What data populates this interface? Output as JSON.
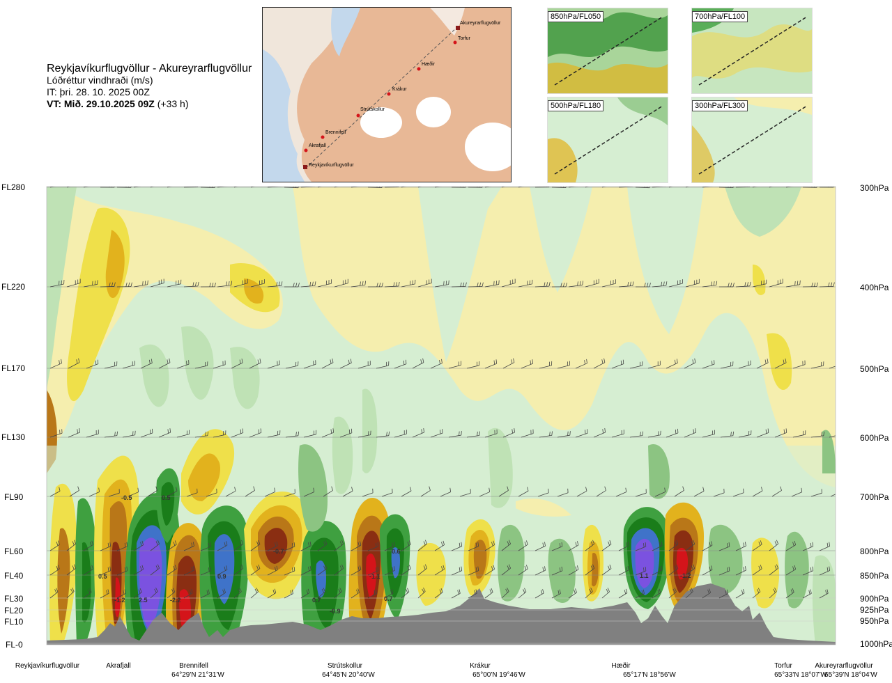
{
  "header": {
    "route": "Reykjavíkurflugvöllur - Akureyrarflugvöllur",
    "quantity": "Lóðréttur vindhraði (m/s)",
    "issue_time": "IT: þri. 28. 10. 2025 00Z",
    "valid_time_bold": "VT: Mið. 29.10.2025 09Z",
    "valid_time_offset": "(+33 h)"
  },
  "overview_map": {
    "places": [
      "Akureyrarflugvöllur",
      "Torfur",
      "Hæðir",
      "Krákur",
      "Strútskollur",
      "Brennifell",
      "Akrafjall",
      "Reykjavíkurflugvöllur"
    ]
  },
  "mini_maps": [
    {
      "label": "850hPa/FL050"
    },
    {
      "label": "700hPa/FL100"
    },
    {
      "label": "500hPa/FL180"
    },
    {
      "label": "300hPa/FL300"
    }
  ],
  "chart_data": {
    "type": "heatmap",
    "title": "Lóðréttur vindhraði (m/s)",
    "y_left_ticks": [
      "FL280",
      "FL220",
      "FL170",
      "FL130",
      "FL90",
      "FL60",
      "FL40",
      "FL30",
      "FL20",
      "FL10",
      "FL-0"
    ],
    "y_right_ticks": [
      "300hPa",
      "400hPa",
      "500hPa",
      "600hPa",
      "700hPa",
      "800hPa",
      "850hPa",
      "900hPa",
      "925hPa",
      "950hPa",
      "1000hPa"
    ],
    "waypoints": [
      {
        "name": "Reykjavíkurflugvöllur",
        "coord": ""
      },
      {
        "name": "Akrafjall",
        "coord": ""
      },
      {
        "name": "Brennifell",
        "coord": "64°29'N 21°31'W"
      },
      {
        "name": "Strútskollur",
        "coord": "64°45'N 20°40'W"
      },
      {
        "name": "Krákur",
        "coord": "65°00'N 19°46'W"
      },
      {
        "name": "Hæðir",
        "coord": "65°17'N 18°56'W"
      },
      {
        "name": "Torfur",
        "coord": "65°33'N 18°07'W"
      },
      {
        "name": "Akureyrarflugvöllur",
        "coord": "65°39'N 18°04'W"
      }
    ],
    "value_labels": [
      "-0.5",
      "0.5",
      "0.5",
      "-1.2",
      "2.5",
      "-2.2",
      "0.9",
      "-0.7",
      "-1.1",
      "0.6",
      "0.7",
      "-0.9",
      "0.7",
      "1.1",
      "-1.2"
    ],
    "colors": {
      "up_strong": "#7b52e0",
      "up_3": "#3f73c9",
      "up_2": "#1a7d1a",
      "up_1": "#3fa040",
      "up_05": "#8cc482",
      "up_02": "#bfe2b5",
      "neutral": "#d6eed2",
      "down_02": "#f5eeae",
      "down_05": "#efe04a",
      "down_1": "#e2b21d",
      "down_2": "#b97718",
      "down_3": "#8a2e12",
      "down_strong": "#d4141a",
      "terrain": "#808080"
    }
  }
}
